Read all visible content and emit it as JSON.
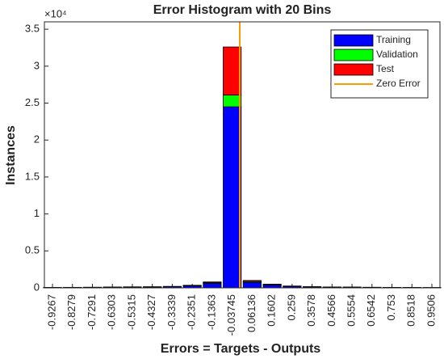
{
  "chart_data": {
    "type": "stacked_histogram",
    "title": "Error Histogram with 20 Bins",
    "x_label": "Errors = Targets - Outputs",
    "y_label": "Instances",
    "y_exponent": "×10⁴",
    "x": [
      -0.9267,
      -0.8279,
      -0.7291,
      -0.6303,
      -0.5315,
      -0.4327,
      -0.3339,
      -0.2351,
      -0.1363,
      -0.03745,
      0.06136,
      0.1602,
      0.259,
      0.3578,
      0.4566,
      0.5554,
      0.6542,
      0.753,
      0.8518,
      0.9506
    ],
    "series": [
      {
        "name": "Training",
        "color": "#0000ff",
        "values": [
          40,
          50,
          60,
          80,
          100,
          110,
          150,
          260,
          600,
          24500,
          750,
          380,
          180,
          120,
          90,
          80,
          60,
          50,
          40,
          30
        ]
      },
      {
        "name": "Validation",
        "color": "#00ff00",
        "values": [
          8,
          10,
          12,
          15,
          18,
          20,
          25,
          45,
          100,
          1600,
          120,
          60,
          35,
          20,
          15,
          14,
          10,
          8,
          8,
          6
        ]
      },
      {
        "name": "Test",
        "color": "#ff0000",
        "values": [
          8,
          10,
          12,
          15,
          18,
          20,
          25,
          45,
          100,
          6500,
          130,
          60,
          35,
          20,
          15,
          14,
          10,
          8,
          8,
          6
        ]
      }
    ],
    "reference_line": {
      "name": "Zero Error",
      "color": "#ff9900",
      "x": 0
    },
    "xlim": [
      -0.9667,
      0.9906
    ],
    "ylim": [
      0,
      36000
    ],
    "yticks": [
      0,
      {
        "value": 5000,
        "label": "0.5"
      },
      {
        "value": 10000,
        "label": "1"
      },
      {
        "value": 15000,
        "label": "1.5"
      },
      {
        "value": 20000,
        "label": "2"
      },
      {
        "value": 25000,
        "label": "2.5"
      },
      {
        "value": 30000,
        "label": "3"
      },
      {
        "value": 35000,
        "label": "3.5"
      }
    ],
    "legend": "top-right"
  }
}
